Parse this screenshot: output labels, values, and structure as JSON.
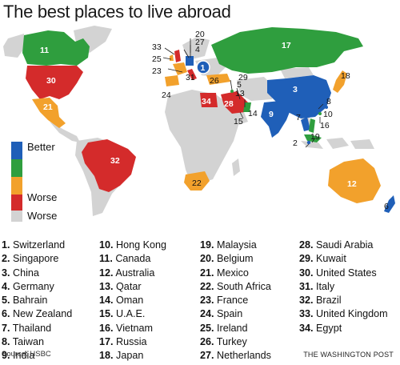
{
  "title": "The best places to live abroad",
  "legend": {
    "items": [
      {
        "label": "Better",
        "color": "#1f5fb8"
      },
      {
        "label": "",
        "color": "#2f9e3e"
      },
      {
        "label": "",
        "color": "#f2a12c"
      },
      {
        "label": "Worse",
        "color": "#d42b2b"
      },
      {
        "label": "Worse",
        "color": "#d3d3d3"
      }
    ]
  },
  "rankings": [
    {
      "rank": "1.",
      "country": "Switzerland"
    },
    {
      "rank": "2.",
      "country": "Singapore"
    },
    {
      "rank": "3.",
      "country": "China"
    },
    {
      "rank": "4.",
      "country": "Germany"
    },
    {
      "rank": "5.",
      "country": "Bahrain"
    },
    {
      "rank": "6.",
      "country": "New Zealand"
    },
    {
      "rank": "7.",
      "country": "Thailand"
    },
    {
      "rank": "8.",
      "country": "Taiwan"
    },
    {
      "rank": "9.",
      "country": "India"
    },
    {
      "rank": "10.",
      "country": "Hong Kong"
    },
    {
      "rank": "11.",
      "country": "Canada"
    },
    {
      "rank": "12.",
      "country": "Australia"
    },
    {
      "rank": "13.",
      "country": "Qatar"
    },
    {
      "rank": "14.",
      "country": "Oman"
    },
    {
      "rank": "15.",
      "country": "U.A.E."
    },
    {
      "rank": "16.",
      "country": "Vietnam"
    },
    {
      "rank": "17.",
      "country": "Russia"
    },
    {
      "rank": "18.",
      "country": "Japan"
    },
    {
      "rank": "19.",
      "country": "Malaysia"
    },
    {
      "rank": "20.",
      "country": "Belgium"
    },
    {
      "rank": "21.",
      "country": "Mexico"
    },
    {
      "rank": "22.",
      "country": "South Africa"
    },
    {
      "rank": "23.",
      "country": "France"
    },
    {
      "rank": "24.",
      "country": "Spain"
    },
    {
      "rank": "25.",
      "country": "Ireland"
    },
    {
      "rank": "26.",
      "country": "Turkey"
    },
    {
      "rank": "27.",
      "country": "Netherlands"
    },
    {
      "rank": "28.",
      "country": "Saudi Arabia"
    },
    {
      "rank": "29.",
      "country": "Kuwait"
    },
    {
      "rank": "30.",
      "country": "United States"
    },
    {
      "rank": "31.",
      "country": "Italy"
    },
    {
      "rank": "32.",
      "country": "Brazil"
    },
    {
      "rank": "33.",
      "country": "United Kingdom"
    },
    {
      "rank": "34.",
      "country": "Egypt"
    }
  ],
  "map_labels": {
    "n1": "1",
    "n2": "2",
    "n3": "3",
    "n4": "4",
    "n5": "5",
    "n6": "6",
    "n7": "7",
    "n8": "8",
    "n9": "9",
    "n10": "10",
    "n11": "11",
    "n12": "12",
    "n13": "13",
    "n14": "14",
    "n15": "15",
    "n16": "16",
    "n17": "17",
    "n18": "18",
    "n19": "19",
    "n20": "20",
    "n21": "21",
    "n22": "22",
    "n23": "23",
    "n24": "24",
    "n25": "25",
    "n26": "26",
    "n27": "27",
    "n28": "28",
    "n29": "29",
    "n30": "30",
    "n31": "31",
    "n32": "32",
    "n33": "33",
    "n34": "34"
  },
  "source": "Source: HSBC",
  "credit": "THE WASHINGTON POST",
  "colors": {
    "blue": "#1f5fb8",
    "green": "#2f9e3e",
    "orange": "#f2a12c",
    "red": "#d42b2b",
    "gray": "#d3d3d3"
  }
}
